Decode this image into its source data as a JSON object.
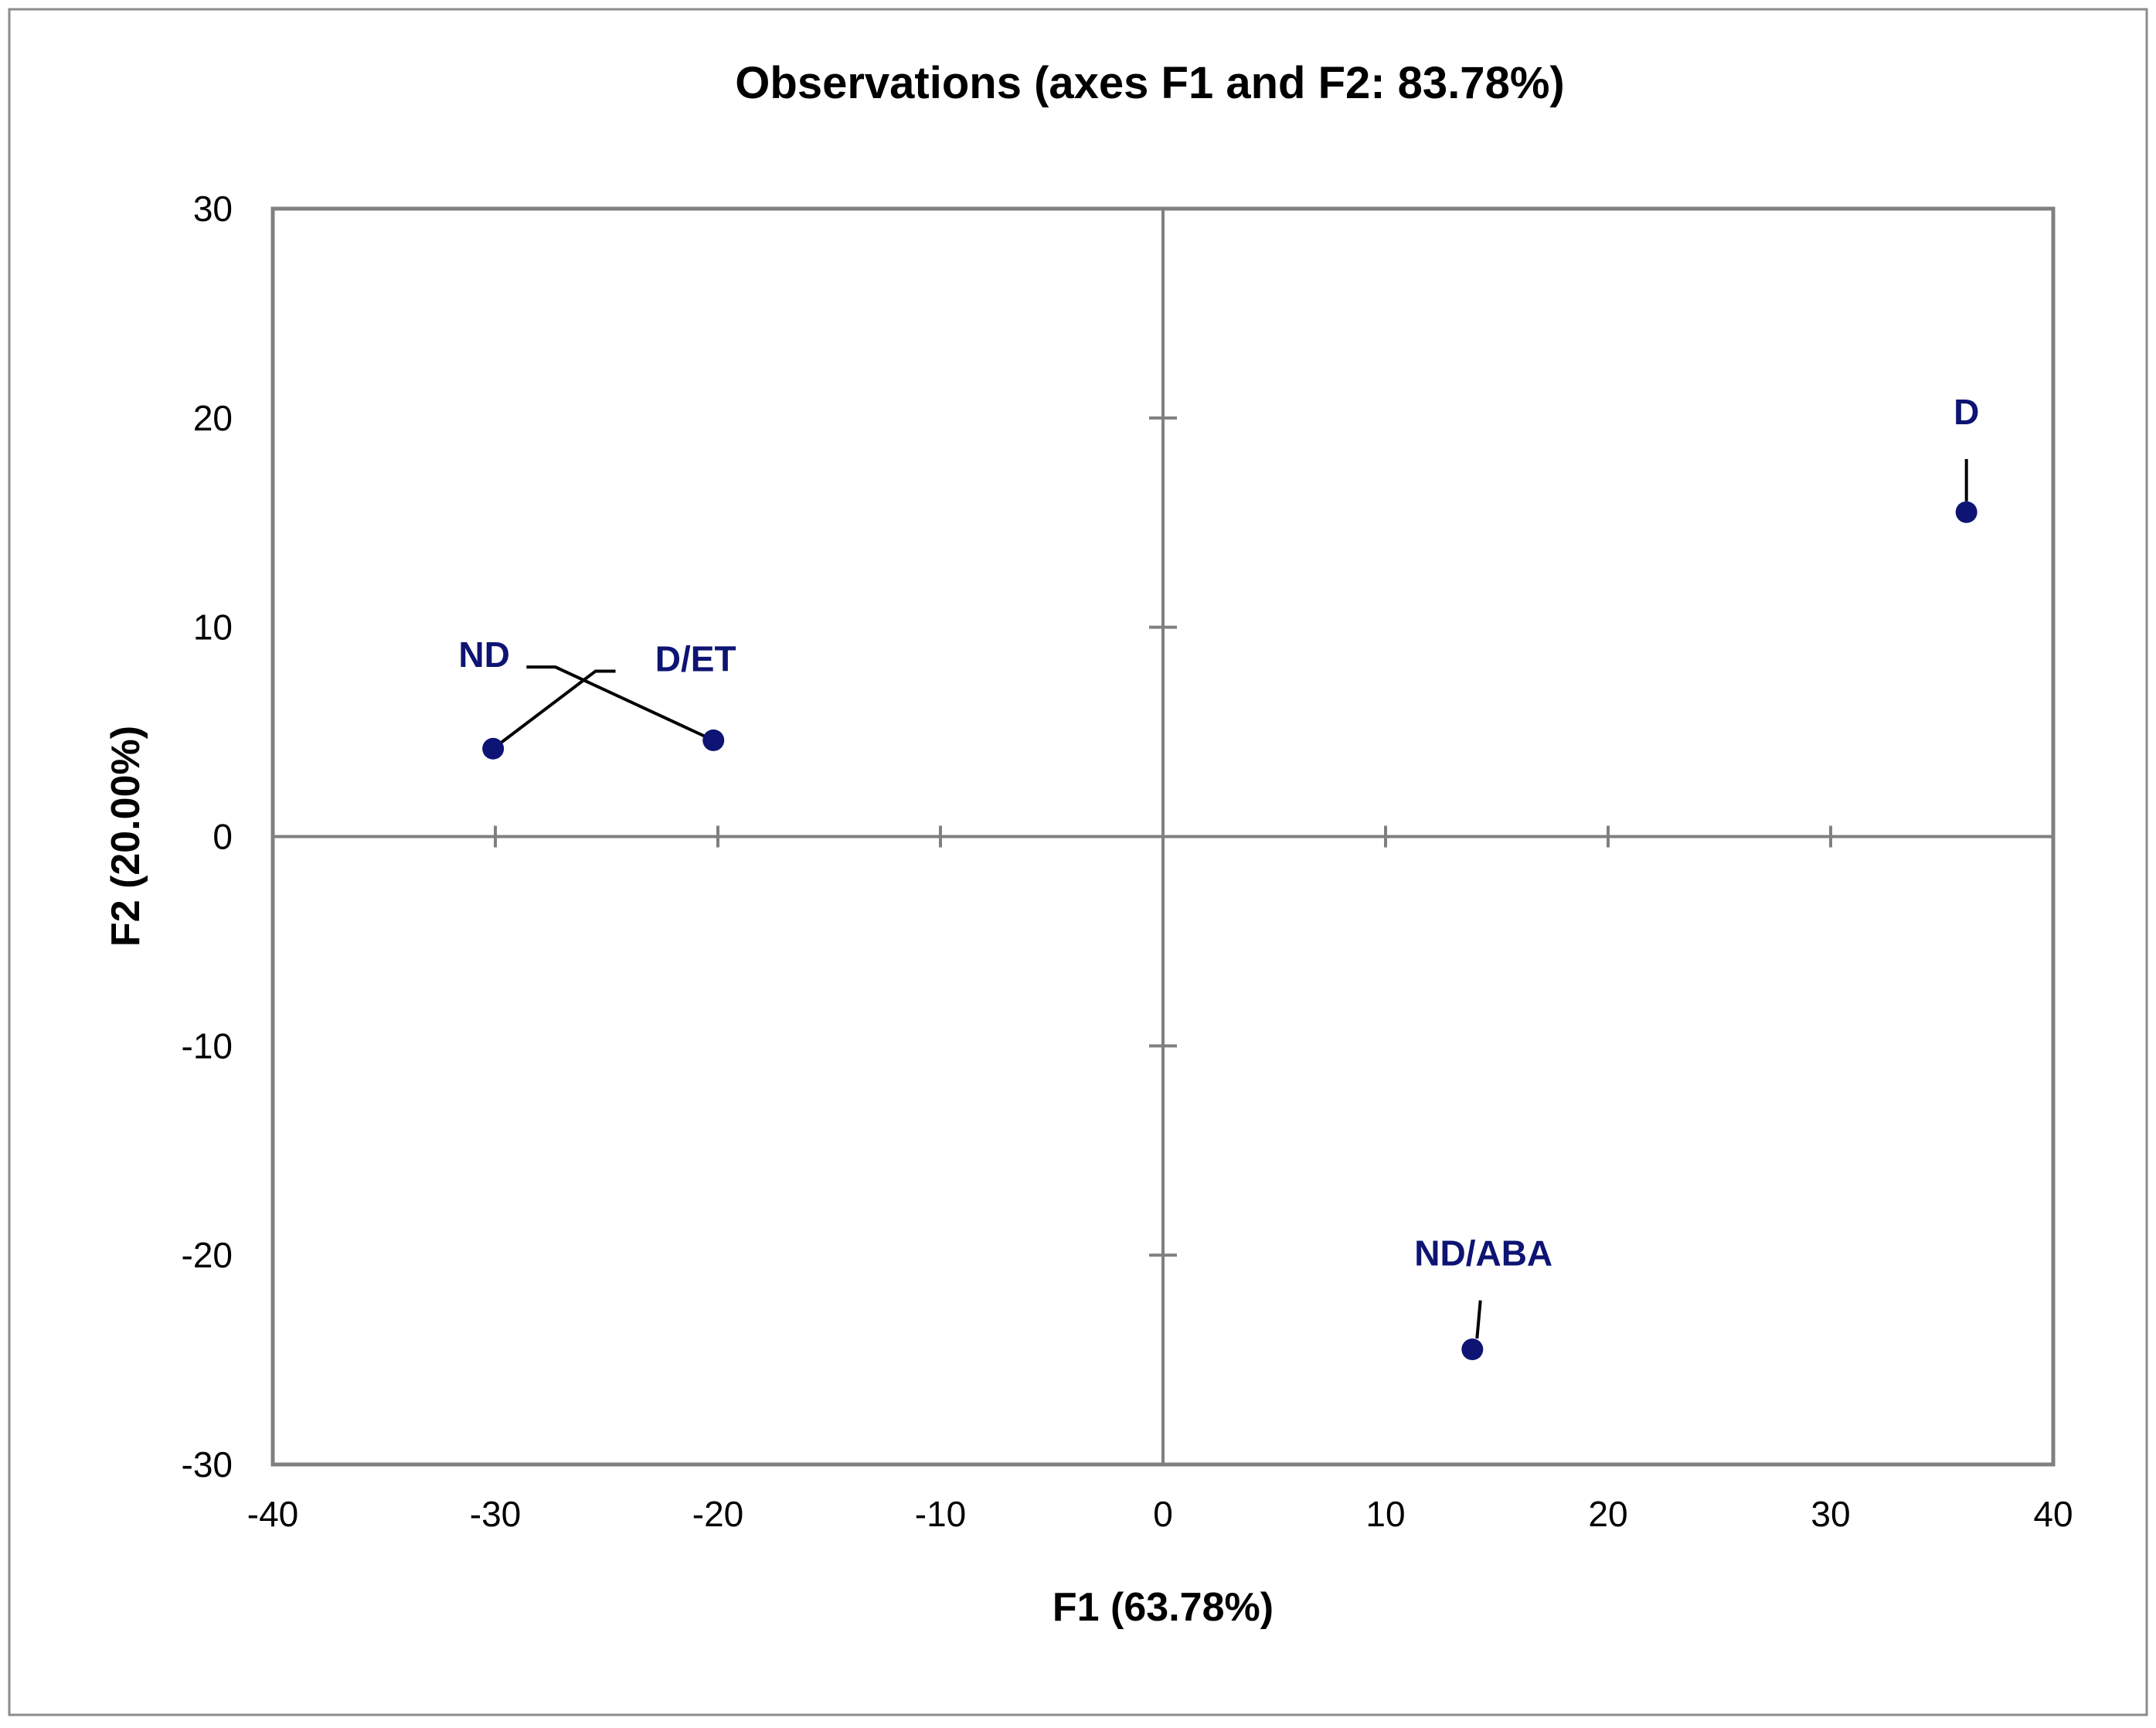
{
  "chart_data": {
    "type": "scatter",
    "title": "Observations (axes F1 and F2: 83.78%)",
    "xlabel": "F1 (63.78%)",
    "ylabel": "F2 (20.00%)",
    "xlim": [
      -40,
      40
    ],
    "ylim": [
      -30,
      30
    ],
    "x_ticks": [
      "-40",
      "-30",
      "-20",
      "-10",
      "0",
      "10",
      "20",
      "30",
      "40"
    ],
    "y_ticks": [
      "30",
      "20",
      "10",
      "0",
      "-10",
      "-20",
      "-30"
    ],
    "x_tick_values": [
      -40,
      -30,
      -20,
      -10,
      0,
      10,
      20,
      30,
      40
    ],
    "y_tick_values": [
      30,
      20,
      10,
      0,
      -10,
      -20,
      -30
    ],
    "grid": false,
    "legend": "none",
    "points": [
      {
        "label": "ND",
        "x": -30.1,
        "y": 4.2,
        "label_x": -30.5,
        "label_y": 8.1
      },
      {
        "label": "D/ET",
        "x": -20.2,
        "y": 4.6,
        "label_x": -21.0,
        "label_y": 7.9
      },
      {
        "label": "D",
        "x": 36.1,
        "y": 15.5,
        "label_x": 36.1,
        "label_y": 19.7
      },
      {
        "label": "ND/ABA",
        "x": 13.9,
        "y": -24.5,
        "label_x": 14.4,
        "label_y": -20.5
      }
    ],
    "colors": {
      "marker": "#0d1473",
      "label": "#0d1473",
      "axis": "#808080",
      "leader": "#000000"
    }
  }
}
